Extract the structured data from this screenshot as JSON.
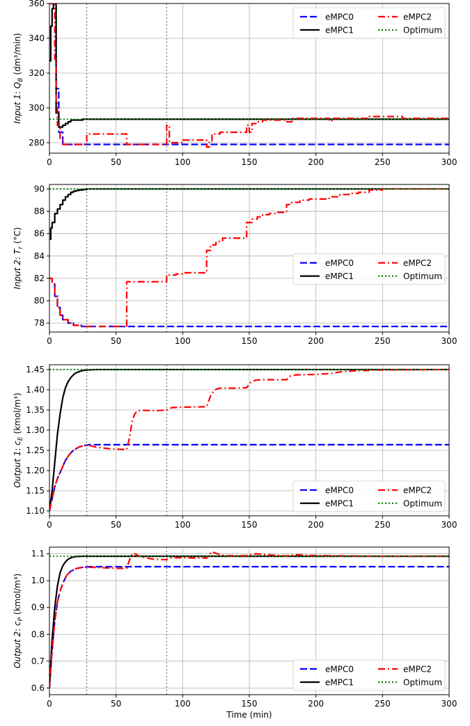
{
  "chart_data": [
    {
      "type": "line",
      "ylabel_name": "Input 1",
      "ylabel_symbol": "Q",
      "ylabel_sub": "B",
      "ylabel_unit": "(dm³/min)",
      "xlim": [
        0,
        300
      ],
      "ylim": [
        274,
        360
      ],
      "xticks": [
        0,
        50,
        100,
        150,
        200,
        250,
        300
      ],
      "yticks": [
        280,
        300,
        320,
        340,
        360
      ],
      "ytick_labels": [
        "280",
        "300",
        "320",
        "340",
        "360"
      ],
      "vlines": [
        28,
        88
      ],
      "legend_position": "upper right",
      "series": [
        {
          "name": "eMPC0",
          "style": "dashed",
          "color": "#0000ff",
          "step": true,
          "x": [
            0,
            3,
            5,
            7,
            10,
            300
          ],
          "y": [
            360,
            360,
            311,
            286,
            279,
            279
          ]
        },
        {
          "name": "eMPC1",
          "style": "solid",
          "color": "#000000",
          "step": true,
          "x": [
            0,
            1,
            2,
            3,
            5,
            7,
            8,
            10,
            12,
            14,
            16,
            20,
            25,
            300
          ],
          "y": [
            327,
            347,
            357,
            360,
            297,
            289,
            289,
            290,
            291,
            292,
            293,
            293,
            293.5,
            293.5
          ]
        },
        {
          "name": "eMPC2",
          "style": "dashdot",
          "color": "#ff0000",
          "step": true,
          "x": [
            0,
            3,
            4,
            5,
            6,
            8,
            10,
            28,
            58,
            88,
            90,
            100,
            118,
            120,
            122,
            128,
            148,
            150,
            152,
            155,
            160,
            178,
            182,
            190,
            200,
            210,
            212,
            220,
            230,
            240,
            250,
            265,
            280,
            300
          ],
          "y": [
            360,
            360,
            328,
            304,
            290,
            282,
            279,
            285,
            279,
            290,
            280,
            281.5,
            277.5,
            281,
            285,
            286,
            290,
            286,
            291,
            292,
            293,
            292,
            294,
            294,
            294,
            292.5,
            294,
            294,
            294,
            295,
            295,
            294,
            294,
            294
          ]
        },
        {
          "name": "Optimum",
          "style": "dotted",
          "color": "#008000",
          "step": false,
          "x": [
            0,
            300
          ],
          "y": [
            293.5,
            293.5
          ]
        }
      ]
    },
    {
      "type": "line",
      "ylabel_name": "Input 2",
      "ylabel_symbol": "T",
      "ylabel_sub": "r",
      "ylabel_unit": "(°C)",
      "xlim": [
        0,
        300
      ],
      "ylim": [
        77.2,
        90.4
      ],
      "xticks": [
        0,
        50,
        100,
        150,
        200,
        250,
        300
      ],
      "yticks": [
        78,
        80,
        82,
        84,
        86,
        88,
        90
      ],
      "ytick_labels": [
        "78",
        "80",
        "82",
        "84",
        "86",
        "88",
        "90"
      ],
      "vlines": [
        28,
        88
      ],
      "legend_position": "center right",
      "series": [
        {
          "name": "eMPC0",
          "style": "dashed",
          "color": "#0000ff",
          "step": true,
          "x": [
            0,
            2,
            4,
            6,
            8,
            10,
            14,
            18,
            24,
            300
          ],
          "y": [
            82,
            81.5,
            80.4,
            79.4,
            78.7,
            78.3,
            78,
            77.8,
            77.7,
            77.7
          ]
        },
        {
          "name": "eMPC1",
          "style": "solid",
          "color": "#000000",
          "step": true,
          "x": [
            0,
            1,
            2,
            4,
            6,
            8,
            10,
            12,
            14,
            16,
            18,
            20,
            22,
            25,
            28,
            300
          ],
          "y": [
            85.5,
            86.5,
            87,
            87.8,
            88.2,
            88.6,
            89,
            89.3,
            89.5,
            89.7,
            89.8,
            89.85,
            89.9,
            89.95,
            90,
            90
          ]
        },
        {
          "name": "eMPC2",
          "style": "dashdot",
          "color": "#ff0000",
          "step": true,
          "x": [
            0,
            2,
            4,
            6,
            8,
            10,
            14,
            18,
            24,
            58,
            88,
            95,
            100,
            118,
            121,
            125,
            130,
            148,
            152,
            156,
            160,
            165,
            170,
            178,
            182,
            188,
            195,
            210,
            218,
            225,
            232,
            240,
            250,
            300
          ],
          "y": [
            82,
            81.5,
            80.4,
            79.4,
            78.7,
            78.3,
            78,
            77.8,
            77.7,
            81.7,
            82.3,
            82.4,
            82.5,
            84.5,
            85,
            85.3,
            85.6,
            87,
            87.3,
            87.5,
            87.7,
            87.8,
            87.9,
            88.6,
            88.8,
            89,
            89.1,
            89.3,
            89.5,
            89.6,
            89.7,
            89.9,
            90,
            90
          ]
        },
        {
          "name": "Optimum",
          "style": "dotted",
          "color": "#008000",
          "step": false,
          "x": [
            0,
            300
          ],
          "y": [
            90,
            90
          ]
        }
      ]
    },
    {
      "type": "line",
      "ylabel_name": "Output 1",
      "ylabel_symbol": "c",
      "ylabel_sub": "E",
      "ylabel_unit": "(kmol/m³)",
      "xlim": [
        0,
        300
      ],
      "ylim": [
        1.088,
        1.462
      ],
      "xticks": [
        0,
        50,
        100,
        150,
        200,
        250,
        300
      ],
      "yticks": [
        1.1,
        1.15,
        1.2,
        1.25,
        1.3,
        1.35,
        1.4,
        1.45
      ],
      "ytick_labels": [
        "1.10",
        "1.15",
        "1.20",
        "1.25",
        "1.30",
        "1.35",
        "1.40",
        "1.45"
      ],
      "vlines": [
        28,
        88
      ],
      "legend_position": "lower right",
      "series": [
        {
          "name": "eMPC0",
          "style": "dashed",
          "color": "#0000ff",
          "step": false,
          "x": [
            0,
            2,
            4,
            6,
            8,
            10,
            12,
            15,
            18,
            22,
            26,
            30,
            300
          ],
          "y": [
            1.1,
            1.13,
            1.16,
            1.18,
            1.195,
            1.21,
            1.225,
            1.24,
            1.25,
            1.258,
            1.262,
            1.264,
            1.264
          ]
        },
        {
          "name": "eMPC1",
          "style": "solid",
          "color": "#000000",
          "step": false,
          "x": [
            0,
            2,
            4,
            6,
            8,
            10,
            12,
            14,
            16,
            18,
            20,
            24,
            28,
            35,
            300
          ],
          "y": [
            1.1,
            1.15,
            1.22,
            1.29,
            1.34,
            1.38,
            1.405,
            1.42,
            1.43,
            1.437,
            1.442,
            1.447,
            1.449,
            1.45,
            1.45
          ]
        },
        {
          "name": "eMPC2",
          "style": "dashdot",
          "color": "#ff0000",
          "step": false,
          "x": [
            0,
            2,
            4,
            6,
            8,
            10,
            12,
            15,
            18,
            22,
            26,
            30,
            35,
            45,
            58,
            60,
            62,
            64,
            66,
            70,
            80,
            88,
            92,
            100,
            118,
            121,
            124,
            128,
            140,
            148,
            151,
            155,
            160,
            178,
            181,
            185,
            200,
            210,
            220,
            230,
            250,
            300
          ],
          "y": [
            1.1,
            1.13,
            1.16,
            1.18,
            1.195,
            1.21,
            1.225,
            1.24,
            1.25,
            1.258,
            1.262,
            1.262,
            1.258,
            1.254,
            1.252,
            1.28,
            1.32,
            1.34,
            1.348,
            1.349,
            1.348,
            1.35,
            1.356,
            1.357,
            1.358,
            1.385,
            1.4,
            1.404,
            1.404,
            1.405,
            1.418,
            1.424,
            1.425,
            1.425,
            1.434,
            1.437,
            1.438,
            1.44,
            1.445,
            1.447,
            1.449,
            1.45
          ]
        },
        {
          "name": "Optimum",
          "style": "dotted",
          "color": "#008000",
          "step": false,
          "x": [
            0,
            300
          ],
          "y": [
            1.45,
            1.45
          ]
        }
      ]
    },
    {
      "type": "line",
      "ylabel_name": "Output 2",
      "ylabel_symbol": "c",
      "ylabel_sub": "P",
      "ylabel_unit": "(kmol/m³)",
      "xlabel": "Time (min)",
      "xlim": [
        0,
        300
      ],
      "ylim": [
        0.575,
        1.125
      ],
      "xticks": [
        0,
        50,
        100,
        150,
        200,
        250,
        300
      ],
      "yticks": [
        0.6,
        0.7,
        0.8,
        0.9,
        1.0,
        1.1
      ],
      "ytick_labels": [
        "0.6",
        "0.7",
        "0.8",
        "0.9",
        "1.0",
        "1.1"
      ],
      "vlines": [
        28,
        88
      ],
      "legend_position": "lower right",
      "series": [
        {
          "name": "eMPC0",
          "style": "dashed",
          "color": "#0000ff",
          "step": false,
          "x": [
            0,
            2,
            4,
            6,
            8,
            10,
            13,
            16,
            20,
            25,
            30,
            300
          ],
          "y": [
            0.6,
            0.74,
            0.85,
            0.92,
            0.96,
            0.99,
            1.02,
            1.035,
            1.045,
            1.05,
            1.052,
            1.052
          ]
        },
        {
          "name": "eMPC1",
          "style": "solid",
          "color": "#000000",
          "step": false,
          "x": [
            0,
            2,
            4,
            6,
            8,
            10,
            12,
            14,
            17,
            20,
            25,
            300
          ],
          "y": [
            0.6,
            0.78,
            0.9,
            0.98,
            1.03,
            1.055,
            1.07,
            1.08,
            1.087,
            1.09,
            1.091,
            1.091
          ]
        },
        {
          "name": "eMPC2",
          "style": "dashdot",
          "color": "#ff0000",
          "step": false,
          "x": [
            0,
            2,
            4,
            6,
            8,
            10,
            13,
            16,
            20,
            25,
            30,
            40,
            50,
            58,
            61,
            63,
            66,
            70,
            78,
            88,
            92,
            100,
            118,
            122,
            126,
            132,
            148,
            155,
            165,
            178,
            185,
            195,
            210,
            230,
            250,
            300
          ],
          "y": [
            0.6,
            0.74,
            0.85,
            0.92,
            0.96,
            0.99,
            1.02,
            1.035,
            1.045,
            1.05,
            1.05,
            1.048,
            1.046,
            1.046,
            1.09,
            1.103,
            1.095,
            1.087,
            1.08,
            1.078,
            1.086,
            1.085,
            1.084,
            1.108,
            1.1,
            1.093,
            1.093,
            1.1,
            1.096,
            1.092,
            1.097,
            1.094,
            1.093,
            1.092,
            1.091,
            1.091
          ]
        },
        {
          "name": "Optimum",
          "style": "dotted",
          "color": "#008000",
          "step": false,
          "x": [
            0,
            300
          ],
          "y": [
            1.091,
            1.091
          ]
        }
      ]
    }
  ]
}
